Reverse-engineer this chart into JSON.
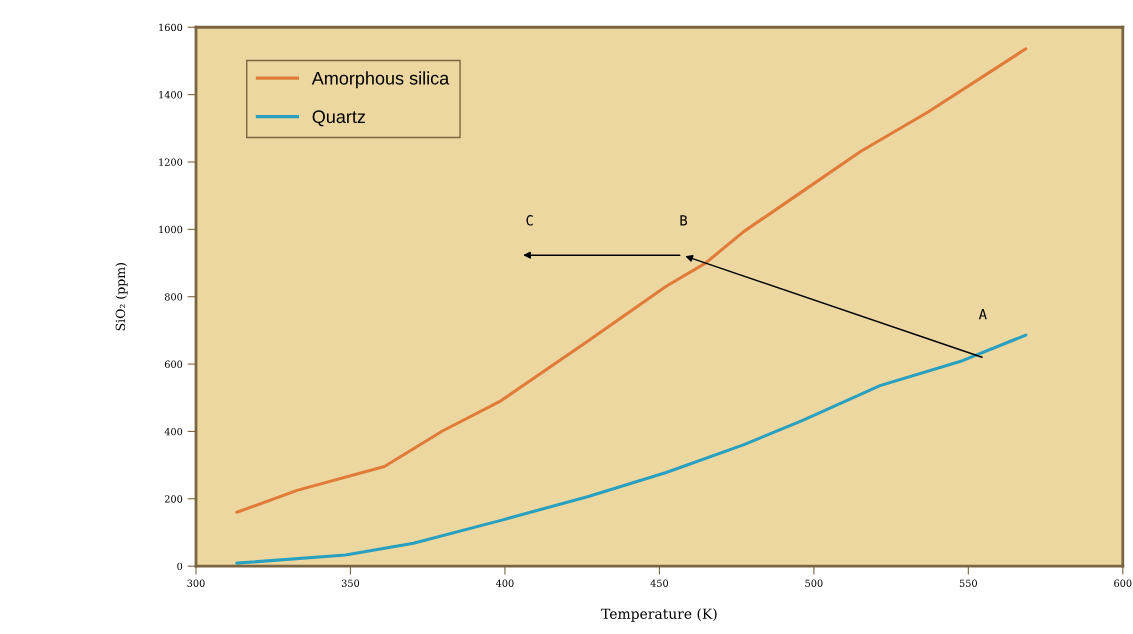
{
  "chart_data": {
    "type": "line",
    "xlabel": "Temperature (K)",
    "ylabel": "SiO₂ (ppm)",
    "xlim": [
      300,
      600
    ],
    "xticks": [
      300,
      350,
      400,
      450,
      500,
      550,
      600
    ],
    "ylim": [
      0,
      1600
    ],
    "yticks": [
      0,
      200,
      400,
      600,
      800,
      1000,
      1200,
      1400,
      1600
    ],
    "grid": false,
    "legend": "top left",
    "series": [
      {
        "name": "Amorphous silica",
        "color": "#e07b39",
        "x": [
          313.2,
          332.7,
          361,
          379.9,
          398.7,
          427,
          452.2,
          464.8,
          477.4,
          496.2,
          515.1,
          537.1,
          568.6
        ],
        "values": [
          160,
          225,
          296,
          402,
          491,
          669,
          831,
          899,
          994,
          1112,
          1231,
          1349,
          1536
        ]
      },
      {
        "name": "Quartz",
        "color": "#2aa0c0",
        "x": [
          313.2,
          348.4,
          370.4,
          398.7,
          427,
          452.2,
          477.4,
          496.2,
          521.4,
          548.1,
          568.6
        ],
        "values": [
          9,
          33,
          68,
          136,
          207,
          278,
          361,
          432,
          536,
          610,
          686
        ]
      }
    ],
    "annotations": [
      "A",
      "B",
      "C"
    ]
  }
}
